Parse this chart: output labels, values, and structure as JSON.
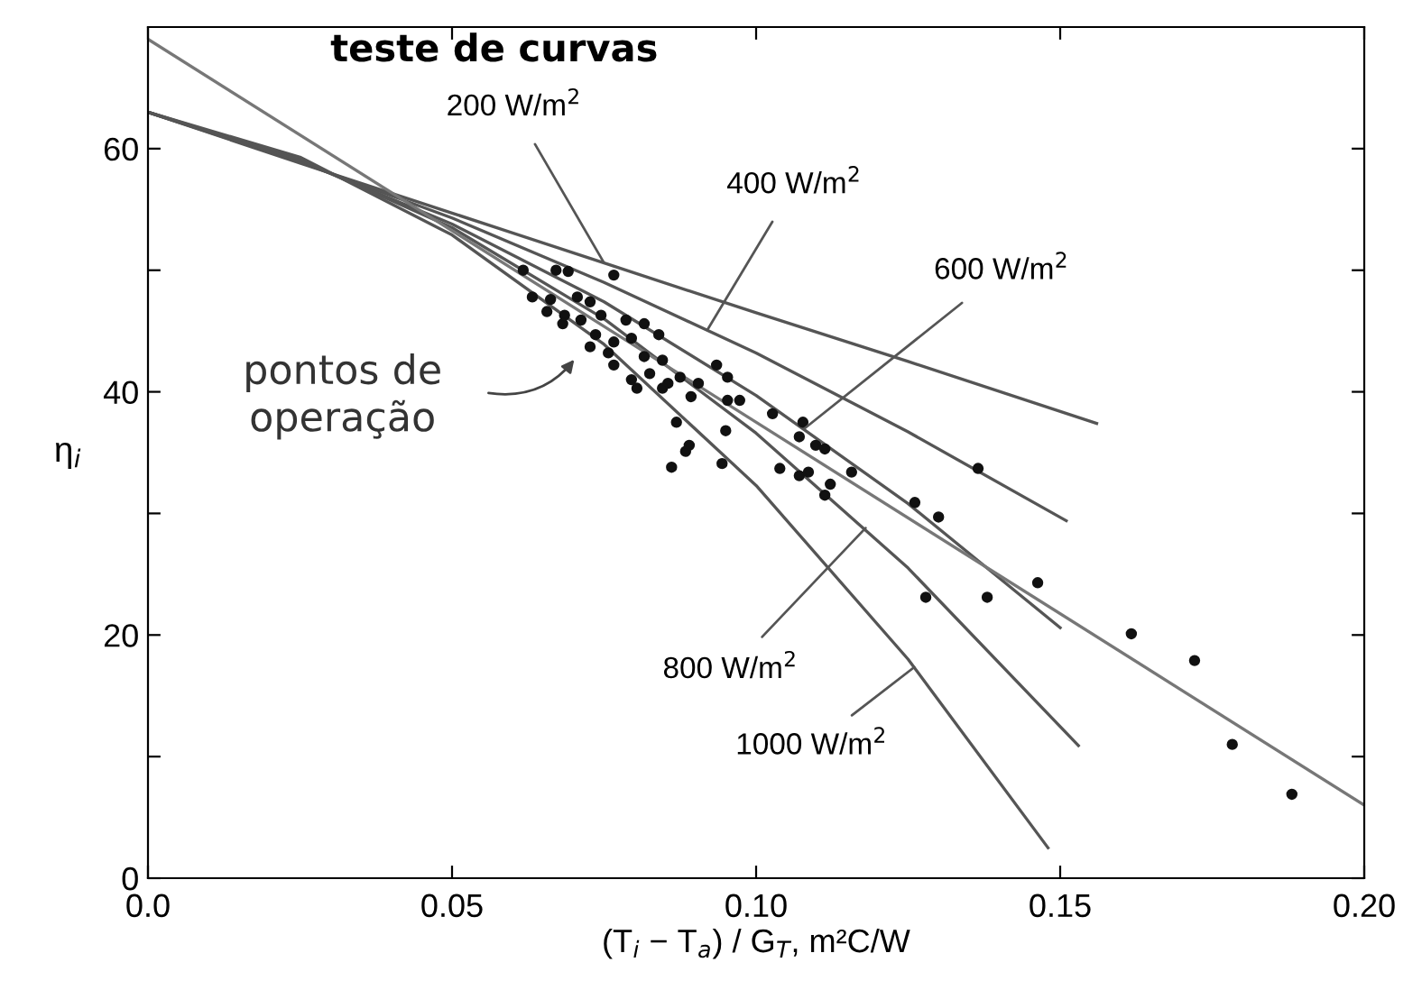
{
  "chart_data": {
    "type": "line",
    "xlabel": "(T$_{i}$ − T$_{a}$) / G$_{T}$, m²C/W",
    "ylabel": "η$_{i}$",
    "xlim": [
      0,
      0.2
    ],
    "ylim": [
      0,
      70
    ],
    "xticks": [
      {
        "value": 0,
        "label": "0.0"
      },
      0.05,
      {
        "value": 0.1,
        "label": "0.10"
      },
      0.15,
      {
        "value": 0.2,
        "label": "0.20"
      }
    ],
    "yticks": [
      0,
      {
        "value": 10,
        "label": null
      },
      20,
      {
        "value": 30,
        "label": null
      },
      40,
      {
        "value": 50,
        "label": null
      },
      60
    ],
    "series": [
      {
        "color": "#555555",
        "x": [
          0,
          0.025,
          0.05,
          0.075,
          0.1,
          0.125,
          0.156
        ],
        "values": [
          63,
          58.8,
          54.7,
          50.6,
          46.5,
          42.5,
          37.4
        ]
      },
      {
        "color": "#555555",
        "x": [
          0,
          0.025,
          0.05,
          0.075,
          0.1,
          0.125,
          0.151
        ],
        "values": [
          63,
          58.9,
          54.3,
          49.0,
          43.2,
          36.7,
          29.4
        ]
      },
      {
        "color": "#555555",
        "x": [
          0,
          0.025,
          0.05,
          0.075,
          0.1,
          0.125,
          0.15
        ],
        "values": [
          63,
          59.0,
          53.8,
          47.4,
          39.7,
          30.8,
          20.6
        ]
      },
      {
        "color": "#555555",
        "x": [
          0,
          0.025,
          0.05,
          0.075,
          0.1,
          0.125,
          0.153
        ],
        "values": [
          63,
          59.1,
          53.5,
          46.0,
          36.6,
          25.5,
          10.9
        ]
      },
      {
        "color": "#555555",
        "x": [
          0,
          0.025,
          0.05,
          0.075,
          0.1,
          0.125,
          0.148
        ],
        "values": [
          63,
          59.3,
          52.9,
          43.9,
          32.3,
          18.0,
          2.5
        ]
      },
      {
        "color": "#777777",
        "x": [
          0,
          0.2
        ],
        "values": [
          69,
          6
        ]
      },
      {
        "type": "scatter",
        "color": "#111111",
        "marker": "circle",
        "x": [
          0.0617,
          0.0671,
          0.0691,
          0.0766,
          0.0632,
          0.0662,
          0.0706,
          0.0727,
          0.0656,
          0.0685,
          0.0682,
          0.0712,
          0.0745,
          0.0786,
          0.0816,
          0.084,
          0.0736,
          0.0766,
          0.0795,
          0.0727,
          0.0757,
          0.0816,
          0.0846,
          0.0935,
          0.0953,
          0.0766,
          0.0795,
          0.0825,
          0.0855,
          0.0875,
          0.0905,
          0.0893,
          0.0846,
          0.0804,
          0.0953,
          0.0973,
          0.1027,
          0.1077,
          0.0869,
          0.095,
          0.1071,
          0.1098,
          0.1113,
          0.089,
          0.0884,
          0.0861,
          0.0944,
          0.1039,
          0.1071,
          0.1086,
          0.1157,
          0.1122,
          0.1113,
          0.1365,
          0.1261,
          0.13,
          0.1279,
          0.138,
          0.1463,
          0.1617,
          0.1721,
          0.1783,
          0.1881
        ],
        "values": [
          50.0,
          50.0,
          49.9,
          49.6,
          47.8,
          47.6,
          47.8,
          47.4,
          46.6,
          46.3,
          45.6,
          45.9,
          46.3,
          45.9,
          45.6,
          44.7,
          44.7,
          44.1,
          44.4,
          43.7,
          43.2,
          42.9,
          42.6,
          42.2,
          41.2,
          42.2,
          41.0,
          41.5,
          40.7,
          41.2,
          40.7,
          39.6,
          40.3,
          40.3,
          39.3,
          39.3,
          38.2,
          37.5,
          37.5,
          36.8,
          36.3,
          35.6,
          35.3,
          35.6,
          35.1,
          33.8,
          34.1,
          33.7,
          33.1,
          33.4,
          33.4,
          32.4,
          31.5,
          33.7,
          30.9,
          29.7,
          23.1,
          23.1,
          24.3,
          20.1,
          17.9,
          11.0,
          6.9
        ]
      }
    ],
    "annotations": [
      "teste de curvas",
      "pontos de\noperação",
      {
        "text": "200 W/m$^{2}$",
        "x": 0.075,
        "y": 50.6
      },
      {
        "text": "400 W/m$^{2}$",
        "x": 0.092,
        "y": 45.1
      },
      {
        "text": "600 W/m$^{2}$",
        "x": 0.108,
        "y": 37.0
      },
      {
        "text": "800 W/m$^{2}$",
        "x": 0.118,
        "y": 28.8
      },
      {
        "text": "1000 W/m$^{2}$",
        "x": 0.126,
        "y": 17.35
      }
    ]
  }
}
